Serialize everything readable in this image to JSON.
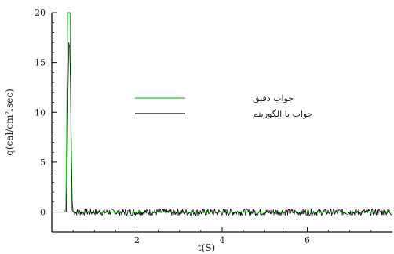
{
  "chart_data": {
    "type": "line",
    "xlabel": "t(S)",
    "ylabel": "q(cal/cm².sec)",
    "xlim": [
      0.0,
      8.0
    ],
    "ylim": [
      -2.0,
      20.0
    ],
    "xticks": [
      2,
      4,
      6
    ],
    "yticks": [
      0,
      5,
      10,
      15,
      20
    ],
    "legend": {
      "placement": "center"
    },
    "series": [
      {
        "name": "جواب دقیق",
        "color": "#22c222",
        "x": [
          0.0,
          0.3,
          0.33,
          0.35,
          0.37,
          0.4,
          0.43,
          0.45,
          0.47,
          0.5,
          8.0
        ],
        "y": [
          0.0,
          0.0,
          0.3,
          8.0,
          20.0,
          20.0,
          20.0,
          8.0,
          0.3,
          0.0,
          0.0
        ]
      },
      {
        "name": "جواب با الگوریتم",
        "color": "#111111",
        "x": [
          0.0,
          0.34,
          0.36,
          0.38,
          0.4,
          0.42,
          0.44,
          0.46,
          0.48,
          0.5
        ],
        "y": [
          0.0,
          0.0,
          4.0,
          12.0,
          17.0,
          16.5,
          13.0,
          6.0,
          1.0,
          0.1
        ],
        "noise_amplitude": 0.35,
        "noise_range": [
          0.5,
          8.0
        ]
      }
    ]
  }
}
